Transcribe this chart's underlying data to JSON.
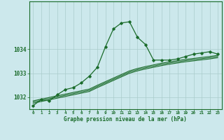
{
  "background_color": "#cce8ec",
  "grid_color": "#aacccc",
  "line_color": "#1a6b2a",
  "xlabel": "Graphe pression niveau de la mer (hPa)",
  "x_ticks": [
    0,
    1,
    2,
    3,
    4,
    5,
    6,
    7,
    8,
    9,
    10,
    11,
    12,
    13,
    14,
    15,
    16,
    17,
    18,
    19,
    20,
    21,
    22,
    23
  ],
  "xlim": [
    -0.5,
    23.5
  ],
  "ylim": [
    1031.5,
    1036.0
  ],
  "y_ticks": [
    1032,
    1033,
    1034
  ],
  "main_series": [
    1031.65,
    1031.9,
    1031.85,
    1032.1,
    1032.32,
    1032.4,
    1032.6,
    1032.88,
    1033.25,
    1034.1,
    1034.85,
    1035.1,
    1035.15,
    1034.5,
    1034.2,
    1033.55,
    1033.55,
    1033.55,
    1033.6,
    1033.7,
    1033.8,
    1033.85,
    1033.9,
    1033.8
  ],
  "trend_series1": [
    1031.85,
    1031.92,
    1031.99,
    1032.06,
    1032.13,
    1032.2,
    1032.27,
    1032.34,
    1032.5,
    1032.65,
    1032.8,
    1032.95,
    1033.1,
    1033.2,
    1033.28,
    1033.35,
    1033.42,
    1033.48,
    1033.53,
    1033.58,
    1033.62,
    1033.66,
    1033.7,
    1033.75
  ],
  "trend_series2": [
    1031.8,
    1031.87,
    1031.94,
    1032.01,
    1032.08,
    1032.15,
    1032.22,
    1032.29,
    1032.45,
    1032.6,
    1032.75,
    1032.9,
    1033.05,
    1033.15,
    1033.23,
    1033.3,
    1033.37,
    1033.43,
    1033.48,
    1033.53,
    1033.57,
    1033.61,
    1033.65,
    1033.7
  ],
  "trend_series3": [
    1031.75,
    1031.82,
    1031.89,
    1031.96,
    1032.03,
    1032.1,
    1032.17,
    1032.24,
    1032.4,
    1032.55,
    1032.7,
    1032.85,
    1033.0,
    1033.1,
    1033.18,
    1033.25,
    1033.32,
    1033.38,
    1033.43,
    1033.48,
    1033.52,
    1033.56,
    1033.6,
    1033.65
  ]
}
